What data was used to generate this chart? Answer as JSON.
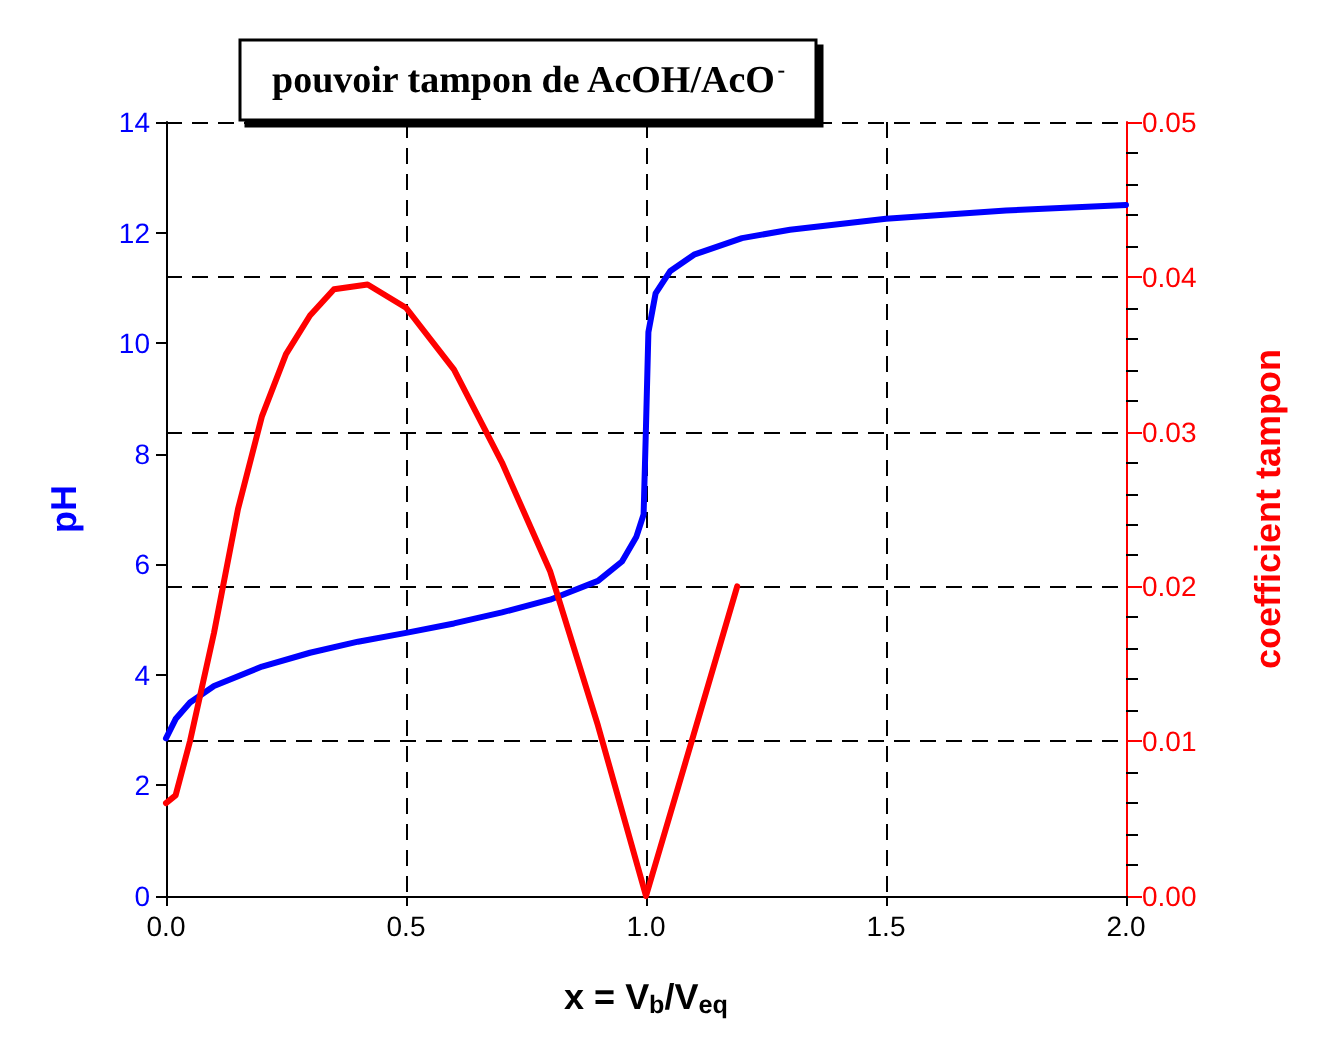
{
  "chart_data": {
    "type": "line",
    "title": "pouvoir tampon de AcOH/AcO$^{-}$",
    "xlabel": "x = V$_{b}$/V$_{eq}$",
    "ylabel": "pH",
    "y2label": "coefficient tampon",
    "xlim": [
      0,
      2
    ],
    "xticks": [
      {
        "value": 0,
        "label": "0.0"
      },
      {
        "value": 0.5,
        "label": "0.5"
      },
      {
        "value": 1,
        "label": "1.0"
      },
      {
        "value": 1.5,
        "label": "1.5"
      },
      {
        "value": 2,
        "label": "2.0"
      }
    ],
    "ylim": [
      0,
      14
    ],
    "yticks": [
      0,
      2,
      4,
      6,
      8,
      10,
      12,
      14
    ],
    "y2lim": [
      0,
      0.05
    ],
    "y2ticks": [
      {
        "value": 0,
        "label": "0.00"
      },
      0.01,
      0.02,
      0.03,
      0.04,
      0.05
    ],
    "grid": true,
    "marker": "none",
    "line_style": "solid",
    "series": [
      {
        "color": "#0000ff",
        "x": [
          0,
          0.02,
          0.05,
          0.1,
          0.2,
          0.3,
          0.4,
          0.5,
          0.6,
          0.7,
          0.8,
          0.9,
          0.95,
          0.98,
          0.995,
          1.0,
          1.005,
          1.02,
          1.05,
          1.1,
          1.2,
          1.3,
          1.5,
          1.75,
          2.0
        ],
        "values": [
          2.85,
          3.2,
          3.5,
          3.8,
          4.15,
          4.4,
          4.6,
          4.76,
          4.93,
          5.13,
          5.36,
          5.7,
          6.05,
          6.5,
          6.9,
          8.5,
          10.2,
          10.9,
          11.3,
          11.6,
          11.9,
          12.05,
          12.25,
          12.4,
          12.5
        ]
      },
      {
        "color": "#ff0000",
        "axis": "y2",
        "x": [
          0,
          0.02,
          0.05,
          0.1,
          0.15,
          0.2,
          0.25,
          0.3,
          0.35,
          0.42,
          0.5,
          0.6,
          0.7,
          0.8,
          0.9,
          1.0,
          1.1,
          1.19
        ],
        "values": [
          0.006,
          0.0065,
          0.01,
          0.017,
          0.025,
          0.031,
          0.035,
          0.0375,
          0.0392,
          0.0395,
          0.038,
          0.034,
          0.028,
          0.021,
          0.011,
          0.0,
          0.0105,
          0.02
        ]
      }
    ]
  }
}
